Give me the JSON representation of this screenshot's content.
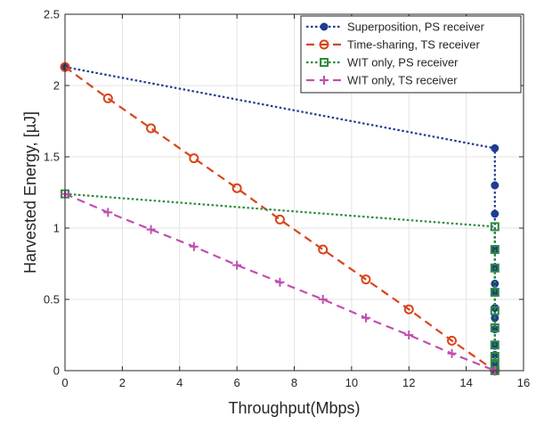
{
  "chart_data": {
    "type": "line",
    "xlabel": "Throughput(Mbps)",
    "ylabel": "Harvested Energy, [µJ]",
    "xlim": [
      0,
      16
    ],
    "ylim": [
      0,
      2.5
    ],
    "xticks": [
      "0",
      "2",
      "4",
      "6",
      "8",
      "10",
      "12",
      "14",
      "16"
    ],
    "yticks": [
      "0",
      "0.5",
      "1",
      "1.5",
      "2",
      "2.5"
    ],
    "grid": true,
    "legend_position": "top-right",
    "series": [
      {
        "name": "Superposition, PS receiver",
        "color": "#1f3c8f",
        "line_style": "dotted",
        "marker": "filled-circle",
        "x": [
          0,
          15,
          15,
          15,
          15,
          15,
          15,
          15,
          15,
          15,
          15,
          15,
          15,
          15,
          15
        ],
        "y": [
          2.13,
          1.56,
          1.3,
          1.1,
          0.85,
          0.72,
          0.61,
          0.55,
          0.44,
          0.37,
          0.29,
          0.18,
          0.11,
          0.05,
          0
        ]
      },
      {
        "name": "Time-sharing, TS receiver",
        "color": "#d9441a",
        "line_style": "dashed",
        "marker": "open-circle",
        "x": [
          0,
          1.5,
          3,
          4.5,
          6,
          7.5,
          9,
          10.5,
          12,
          13.5,
          15
        ],
        "y": [
          2.13,
          1.91,
          1.7,
          1.49,
          1.28,
          1.06,
          0.85,
          0.64,
          0.43,
          0.21,
          0
        ]
      },
      {
        "name": "WIT only, PS receiver",
        "color": "#2e8b3c",
        "line_style": "dotted",
        "marker": "square",
        "x": [
          0,
          15,
          15,
          15,
          15,
          15,
          15,
          15,
          15,
          15,
          15
        ],
        "y": [
          1.24,
          1.01,
          0.85,
          0.72,
          0.55,
          0.42,
          0.3,
          0.18,
          0.1,
          0.04,
          0
        ]
      },
      {
        "name": "WIT only, TS receiver",
        "color": "#c04fb0",
        "line_style": "dashed",
        "marker": "plus",
        "x": [
          0,
          1.5,
          3,
          4.5,
          6,
          7.5,
          9,
          10.5,
          12,
          13.5,
          15
        ],
        "y": [
          1.24,
          1.11,
          0.99,
          0.87,
          0.74,
          0.62,
          0.5,
          0.37,
          0.25,
          0.12,
          0
        ]
      }
    ]
  }
}
